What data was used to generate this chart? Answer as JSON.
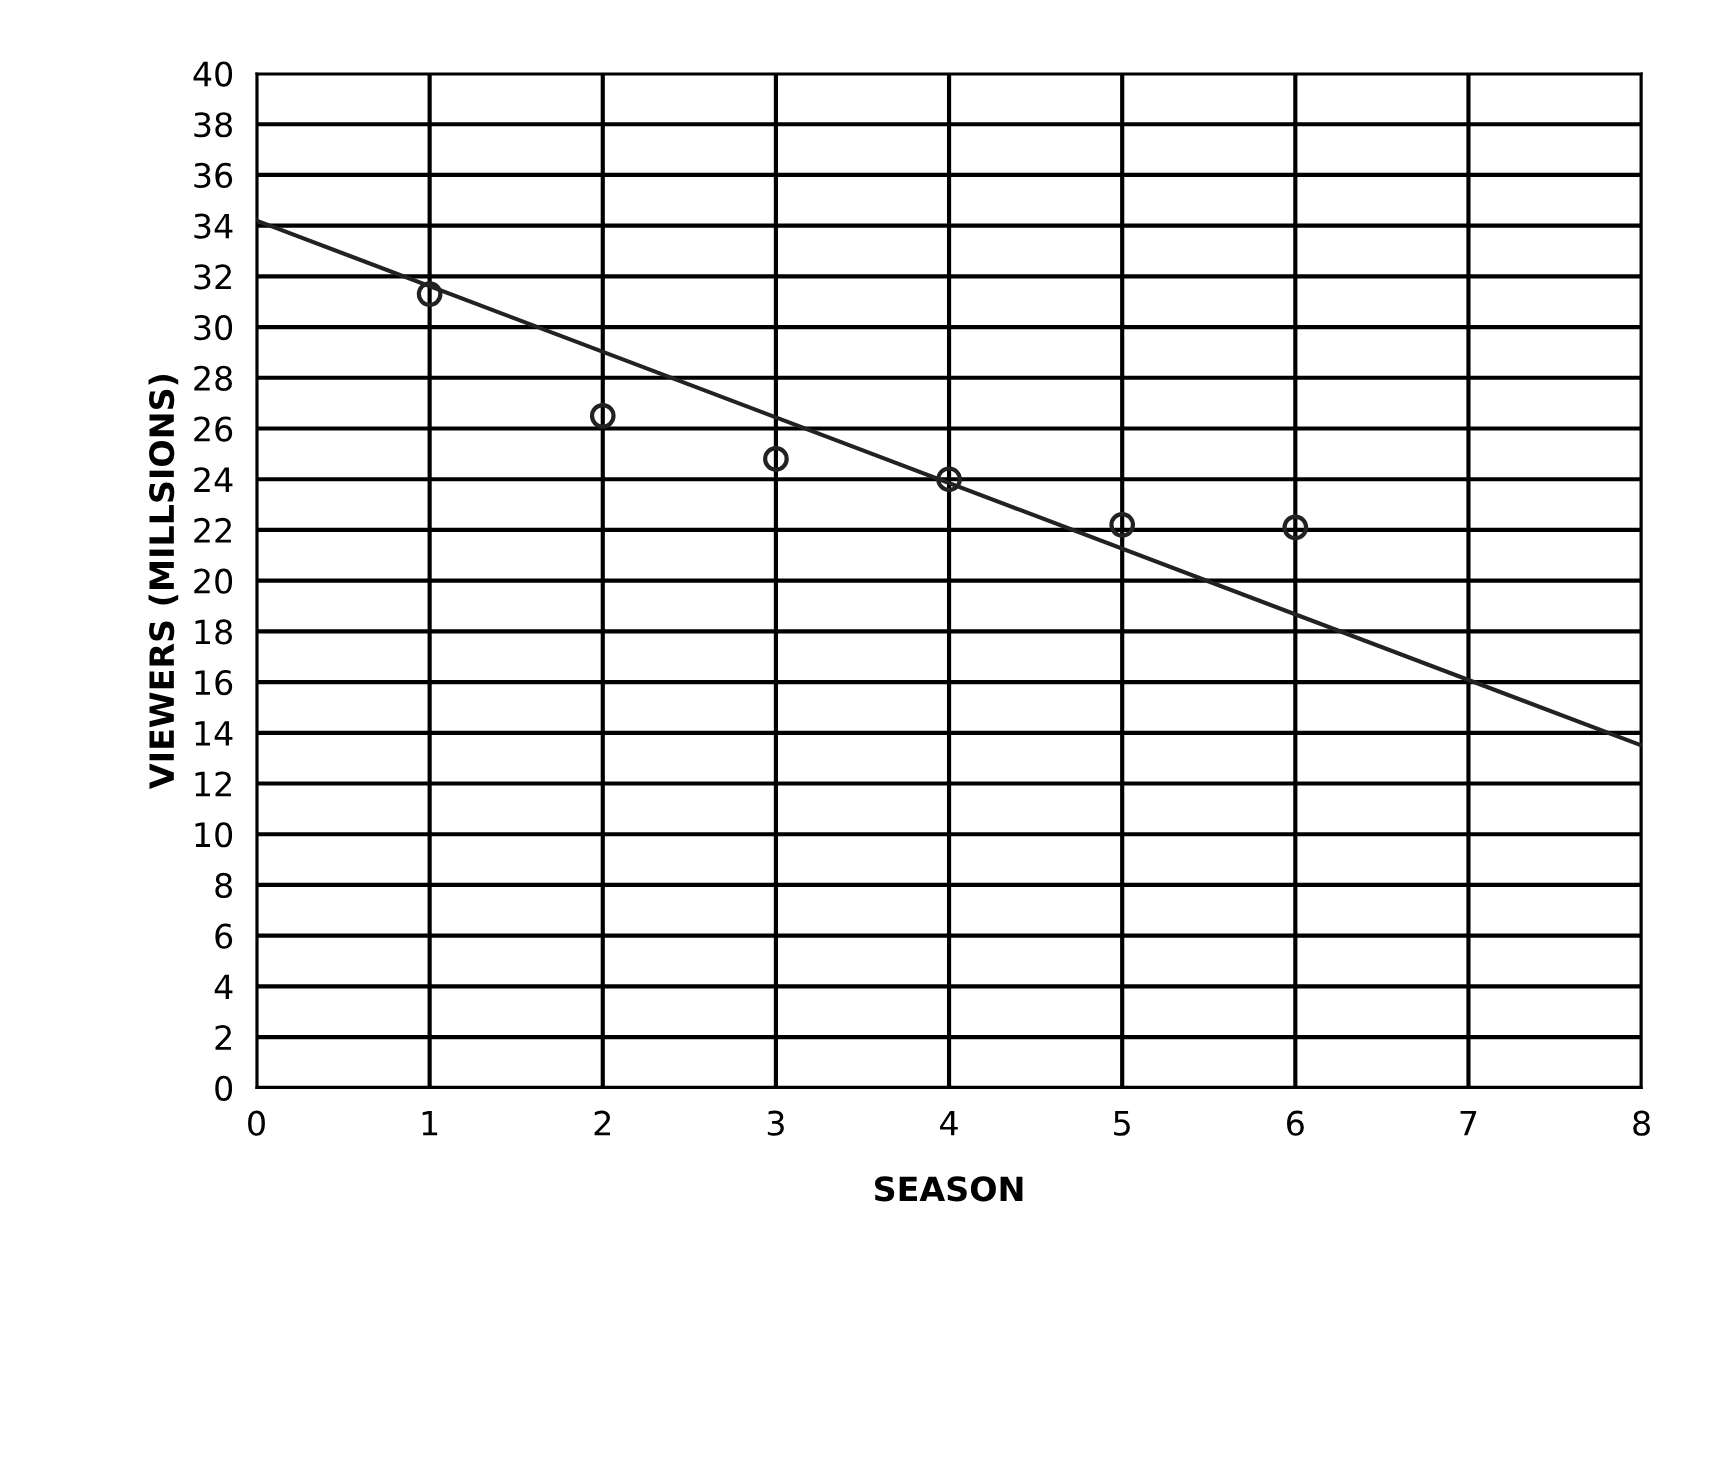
{
  "chart_data": {
    "type": "scatter",
    "xlabel": "SEASON",
    "ylabel": "VIEWERS (MILLSIONS)",
    "xlim": [
      0,
      8
    ],
    "ylim": [
      0,
      40
    ],
    "xticks": [
      0,
      1,
      2,
      3,
      4,
      5,
      6,
      7,
      8
    ],
    "yticks": [
      0,
      2,
      4,
      6,
      8,
      10,
      12,
      14,
      16,
      18,
      20,
      22,
      24,
      26,
      28,
      30,
      32,
      34,
      36,
      38,
      40
    ],
    "grid": true,
    "marker": "circle",
    "series": [
      {
        "color": "#222222",
        "x": [
          1,
          2,
          3,
          4,
          5,
          6
        ],
        "values": [
          31.3,
          26.5,
          24.8,
          24.0,
          22.2,
          22.1
        ]
      },
      {
        "type": "line",
        "color": "#222222",
        "x": [
          0,
          8
        ],
        "values": [
          34.2,
          13.5
        ],
        "marker": "none",
        "line_style": "solid"
      }
    ]
  }
}
